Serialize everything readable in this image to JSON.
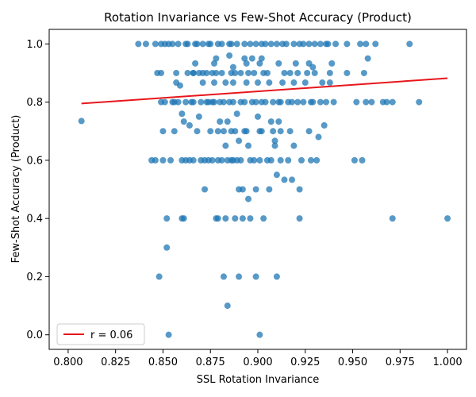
{
  "chart_data": {
    "type": "scatter",
    "title": "Rotation Invariance vs Few-Shot Accuracy (Product)",
    "xlabel": "SSL Rotation Invariance",
    "ylabel": "Few-Shot Accuracy (Product)",
    "xlim": [
      0.8,
      1.0
    ],
    "ylim": [
      0.0,
      1.0
    ],
    "xticks": [
      "0.800",
      "0.825",
      "0.850",
      "0.875",
      "0.900",
      "0.925",
      "0.950",
      "0.975",
      "1.000"
    ],
    "yticks": [
      "0.0",
      "0.2",
      "0.4",
      "0.6",
      "0.8",
      "1.0"
    ],
    "grid": false,
    "legend": {
      "label": "r = 0.06",
      "placement": "lower-left"
    },
    "colors": {
      "points": "#1f77b4",
      "fit_line": "#e8161b"
    },
    "fit_line": {
      "x": [
        0.807,
        1.0
      ],
      "y": [
        0.795,
        0.882
      ]
    },
    "points": [
      [
        0.807,
        0.735
      ],
      [
        0.837,
        1.0
      ],
      [
        0.841,
        1.0
      ],
      [
        0.844,
        0.6
      ],
      [
        0.846,
        0.6
      ],
      [
        0.847,
        0.9
      ],
      [
        0.848,
        0.2
      ],
      [
        0.849,
        0.9
      ],
      [
        0.849,
        1.0
      ],
      [
        0.849,
        0.8
      ],
      [
        0.85,
        0.6
      ],
      [
        0.85,
        0.7
      ],
      [
        0.851,
        1.0
      ],
      [
        0.851,
        0.8
      ],
      [
        0.852,
        0.4
      ],
      [
        0.852,
        0.3
      ],
      [
        0.853,
        0.0
      ],
      [
        0.853,
        1.0
      ],
      [
        0.854,
        0.6
      ],
      [
        0.855,
        0.8
      ],
      [
        0.856,
        0.7
      ],
      [
        0.857,
        0.9
      ],
      [
        0.857,
        0.867
      ],
      [
        0.858,
        0.8
      ],
      [
        0.858,
        1.0
      ],
      [
        0.859,
        0.857
      ],
      [
        0.86,
        0.4
      ],
      [
        0.86,
        0.6
      ],
      [
        0.86,
        0.76
      ],
      [
        0.861,
        0.733
      ],
      [
        0.861,
        0.4
      ],
      [
        0.862,
        0.8
      ],
      [
        0.862,
        0.6
      ],
      [
        0.863,
        0.9
      ],
      [
        0.863,
        1.0
      ],
      [
        0.864,
        0.72
      ],
      [
        0.865,
        0.8
      ],
      [
        0.866,
        0.6
      ],
      [
        0.866,
        0.9
      ],
      [
        0.867,
        0.933
      ],
      [
        0.867,
        1.0
      ],
      [
        0.868,
        0.7
      ],
      [
        0.869,
        0.75
      ],
      [
        0.869,
        0.9
      ],
      [
        0.87,
        0.8
      ],
      [
        0.871,
        1.0
      ],
      [
        0.871,
        0.867
      ],
      [
        0.872,
        0.5
      ],
      [
        0.872,
        0.6
      ],
      [
        0.873,
        0.9
      ],
      [
        0.873,
        0.8
      ],
      [
        0.874,
        0.6
      ],
      [
        0.875,
        0.7
      ],
      [
        0.875,
        1.0
      ],
      [
        0.876,
        0.9
      ],
      [
        0.876,
        0.8
      ],
      [
        0.877,
        0.933
      ],
      [
        0.877,
        0.867
      ],
      [
        0.878,
        0.95
      ],
      [
        0.878,
        0.4
      ],
      [
        0.879,
        0.6
      ],
      [
        0.879,
        0.4
      ],
      [
        0.88,
        0.8
      ],
      [
        0.88,
        0.733
      ],
      [
        0.881,
        0.9
      ],
      [
        0.881,
        1.0
      ],
      [
        0.882,
        0.7
      ],
      [
        0.882,
        0.2
      ],
      [
        0.883,
        0.867
      ],
      [
        0.883,
        0.4
      ],
      [
        0.883,
        0.65
      ],
      [
        0.884,
        0.6
      ],
      [
        0.884,
        0.1
      ],
      [
        0.884,
        0.733
      ],
      [
        0.885,
        0.96
      ],
      [
        0.885,
        0.8
      ],
      [
        0.886,
        1.0
      ],
      [
        0.886,
        0.9
      ],
      [
        0.887,
        0.6
      ],
      [
        0.887,
        0.867
      ],
      [
        0.887,
        0.92
      ],
      [
        0.888,
        0.7
      ],
      [
        0.888,
        0.4
      ],
      [
        0.889,
        0.6
      ],
      [
        0.889,
        0.76
      ],
      [
        0.89,
        0.667
      ],
      [
        0.89,
        0.2
      ],
      [
        0.89,
        0.5
      ],
      [
        0.891,
        0.9
      ],
      [
        0.891,
        0.8
      ],
      [
        0.892,
        0.5
      ],
      [
        0.892,
        0.4
      ],
      [
        0.893,
        0.95
      ],
      [
        0.893,
        0.7
      ],
      [
        0.894,
        0.933
      ],
      [
        0.894,
        0.867
      ],
      [
        0.895,
        0.467
      ],
      [
        0.895,
        0.65
      ],
      [
        0.896,
        1.0
      ],
      [
        0.896,
        0.4
      ],
      [
        0.897,
        0.8
      ],
      [
        0.897,
        0.95
      ],
      [
        0.898,
        0.9
      ],
      [
        0.898,
        0.6
      ],
      [
        0.899,
        0.2
      ],
      [
        0.899,
        0.5
      ],
      [
        0.9,
        0.867
      ],
      [
        0.9,
        0.75
      ],
      [
        0.901,
        0.933
      ],
      [
        0.901,
        0.0
      ],
      [
        0.902,
        0.95
      ],
      [
        0.902,
        0.7
      ],
      [
        0.903,
        0.9
      ],
      [
        0.903,
        0.4
      ],
      [
        0.904,
        0.8
      ],
      [
        0.904,
        1.0
      ],
      [
        0.905,
        0.6
      ],
      [
        0.906,
        0.5
      ],
      [
        0.906,
        0.867
      ],
      [
        0.907,
        0.733
      ],
      [
        0.908,
        0.7
      ],
      [
        0.908,
        0.8
      ],
      [
        0.909,
        0.667
      ],
      [
        0.909,
        0.65
      ],
      [
        0.91,
        0.2
      ],
      [
        0.91,
        0.55
      ],
      [
        0.911,
        0.933
      ],
      [
        0.911,
        0.733
      ],
      [
        0.912,
        0.6
      ],
      [
        0.912,
        0.8
      ],
      [
        0.913,
        0.867
      ],
      [
        0.914,
        0.533
      ],
      [
        0.915,
        1.0
      ],
      [
        0.916,
        0.8
      ],
      [
        0.917,
        0.9
      ],
      [
        0.917,
        0.7
      ],
      [
        0.918,
        0.533
      ],
      [
        0.919,
        0.867
      ],
      [
        0.919,
        0.65
      ],
      [
        0.92,
        0.933
      ],
      [
        0.921,
        0.8
      ],
      [
        0.922,
        0.5
      ],
      [
        0.922,
        0.4
      ],
      [
        0.923,
        0.6
      ],
      [
        0.924,
        1.0
      ],
      [
        0.925,
        0.867
      ],
      [
        0.926,
        0.9
      ],
      [
        0.927,
        0.7
      ],
      [
        0.927,
        0.933
      ],
      [
        0.928,
        0.6
      ],
      [
        0.929,
        0.92
      ],
      [
        0.929,
        0.8
      ],
      [
        0.93,
        0.9
      ],
      [
        0.931,
        0.6
      ],
      [
        0.932,
        0.68
      ],
      [
        0.933,
        1.0
      ],
      [
        0.934,
        0.867
      ],
      [
        0.935,
        0.72
      ],
      [
        0.936,
        0.8
      ],
      [
        0.937,
        1.0
      ],
      [
        0.938,
        0.867
      ],
      [
        0.938,
        0.9
      ],
      [
        0.939,
        0.933
      ],
      [
        0.94,
        0.8
      ],
      [
        0.941,
        1.0
      ],
      [
        0.947,
        0.9
      ],
      [
        0.947,
        1.0
      ],
      [
        0.951,
        0.6
      ],
      [
        0.952,
        0.8
      ],
      [
        0.954,
        1.0
      ],
      [
        0.955,
        0.6
      ],
      [
        0.956,
        0.9
      ],
      [
        0.957,
        1.0
      ],
      [
        0.957,
        0.8
      ],
      [
        0.958,
        0.95
      ],
      [
        0.96,
        0.8
      ],
      [
        0.962,
        1.0
      ],
      [
        0.966,
        0.8
      ],
      [
        0.968,
        0.8
      ],
      [
        0.971,
        0.8
      ],
      [
        0.971,
        0.4
      ],
      [
        0.98,
        1.0
      ],
      [
        0.985,
        0.8
      ],
      [
        1.0,
        0.4
      ],
      [
        0.846,
        1.0
      ],
      [
        0.855,
        1.0
      ],
      [
        0.862,
        1.0
      ],
      [
        0.868,
        1.0
      ],
      [
        0.874,
        1.0
      ],
      [
        0.879,
        1.0
      ],
      [
        0.885,
        1.0
      ],
      [
        0.889,
        1.0
      ],
      [
        0.893,
        1.0
      ],
      [
        0.899,
        1.0
      ],
      [
        0.902,
        1.0
      ],
      [
        0.907,
        1.0
      ],
      [
        0.91,
        1.0
      ],
      [
        0.913,
        1.0
      ],
      [
        0.919,
        1.0
      ],
      [
        0.922,
        1.0
      ],
      [
        0.927,
        1.0
      ],
      [
        0.93,
        1.0
      ],
      [
        0.936,
        1.0
      ],
      [
        0.856,
        0.8
      ],
      [
        0.866,
        0.8
      ],
      [
        0.874,
        0.8
      ],
      [
        0.877,
        0.8
      ],
      [
        0.882,
        0.8
      ],
      [
        0.887,
        0.8
      ],
      [
        0.893,
        0.8
      ],
      [
        0.899,
        0.8
      ],
      [
        0.902,
        0.8
      ],
      [
        0.911,
        0.8
      ],
      [
        0.918,
        0.8
      ],
      [
        0.924,
        0.8
      ],
      [
        0.928,
        0.8
      ],
      [
        0.933,
        0.8
      ],
      [
        0.864,
        0.6
      ],
      [
        0.87,
        0.6
      ],
      [
        0.876,
        0.6
      ],
      [
        0.881,
        0.6
      ],
      [
        0.886,
        0.6
      ],
      [
        0.891,
        0.6
      ],
      [
        0.896,
        0.6
      ],
      [
        0.901,
        0.6
      ],
      [
        0.907,
        0.6
      ],
      [
        0.916,
        0.6
      ],
      [
        0.866,
        0.9
      ],
      [
        0.871,
        0.9
      ],
      [
        0.878,
        0.9
      ],
      [
        0.888,
        0.9
      ],
      [
        0.895,
        0.9
      ],
      [
        0.905,
        0.9
      ],
      [
        0.914,
        0.9
      ],
      [
        0.921,
        0.9
      ],
      [
        0.879,
        0.7
      ],
      [
        0.886,
        0.7
      ],
      [
        0.894,
        0.7
      ],
      [
        0.901,
        0.7
      ],
      [
        0.912,
        0.7
      ]
    ]
  }
}
